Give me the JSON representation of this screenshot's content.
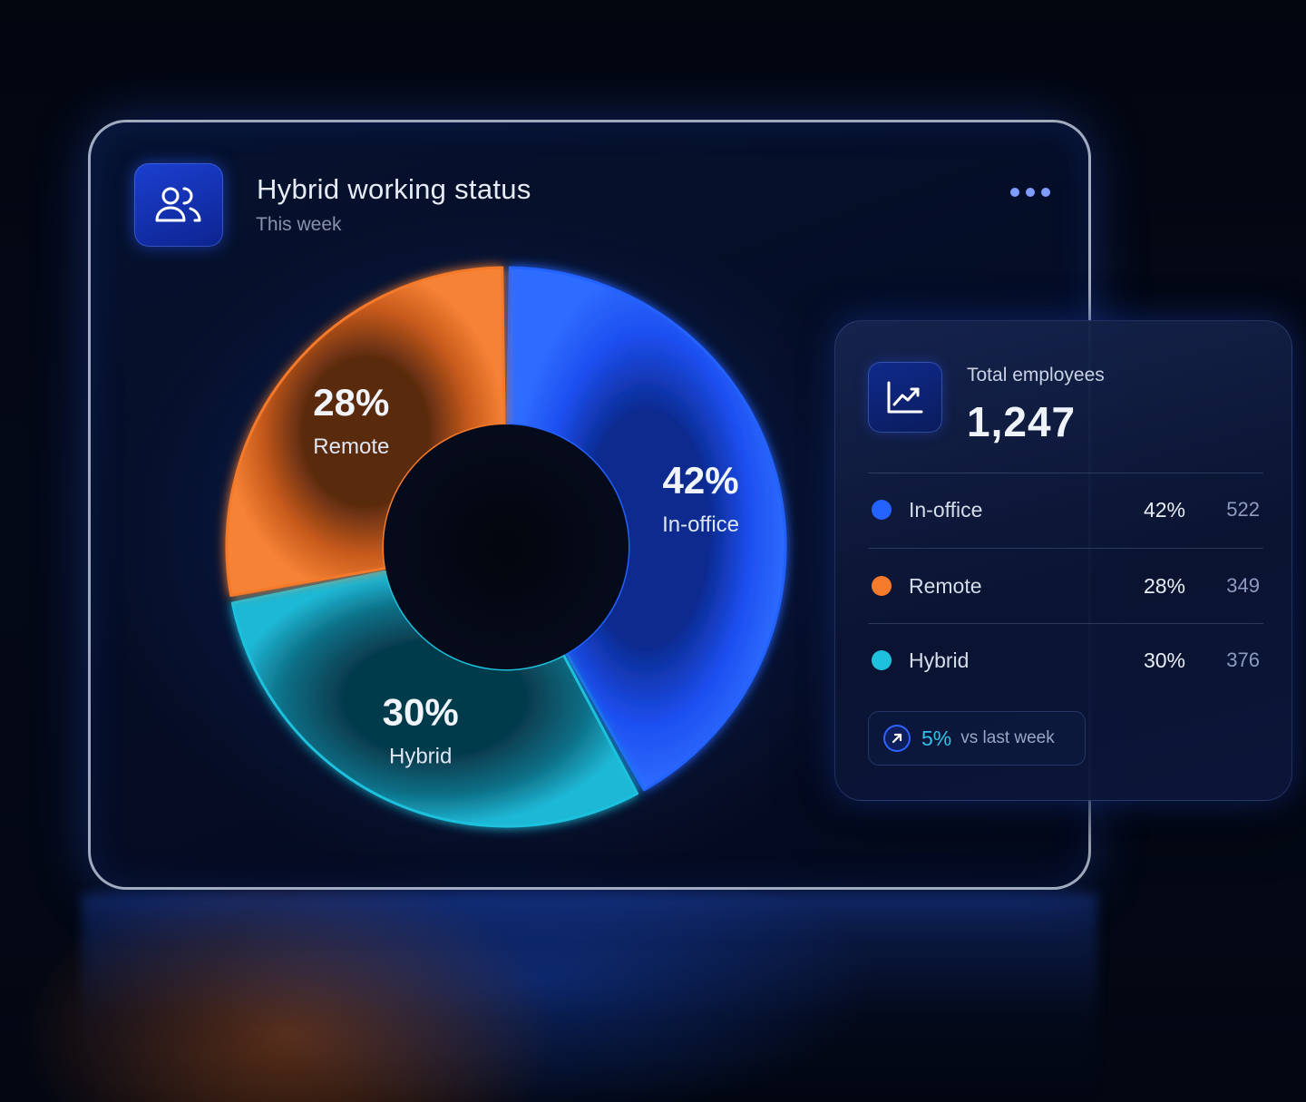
{
  "header": {
    "title": "Hybrid working status",
    "subtitle": "This week",
    "icon": "users-icon",
    "menu_icon": "more-horizontal-icon"
  },
  "colors": {
    "in_office": "#2463ff",
    "remote": "#f47a2c",
    "hybrid": "#1dc1dd",
    "accent": "#1b3fd0"
  },
  "chart_data": {
    "type": "pie",
    "donut": true,
    "categories": [
      "In-office",
      "Remote",
      "Hybrid"
    ],
    "values": [
      42,
      28,
      30
    ],
    "labels": [
      "42%",
      "28%",
      "30%"
    ],
    "title": "Hybrid working status",
    "subtitle": "This week"
  },
  "summary": {
    "total_label": "Total employees",
    "total_value": "1,247",
    "icon": "trend-up-icon",
    "rows": [
      {
        "label": "In-office",
        "pct": "42%",
        "count": "522",
        "color": "#2463ff"
      },
      {
        "label": "Remote",
        "pct": "28%",
        "count": "349",
        "color": "#f47a2c"
      },
      {
        "label": "Hybrid",
        "pct": "30%",
        "count": "376",
        "color": "#1dc1dd"
      }
    ],
    "change": {
      "value": "5%",
      "text": "vs last week",
      "icon": "arrow-up-right-icon"
    }
  }
}
